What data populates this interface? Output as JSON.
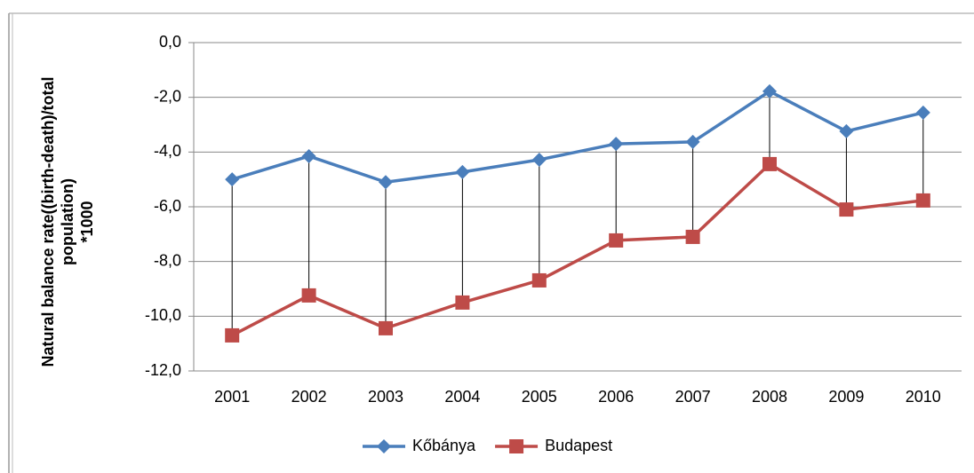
{
  "chart_data": {
    "type": "line",
    "ylabel": [
      "Natural balance rate((birth-death)/total",
      "population)",
      "*1000"
    ],
    "categories": [
      "2001",
      "2002",
      "2003",
      "2004",
      "2005",
      "2006",
      "2007",
      "2008",
      "2009",
      "2010"
    ],
    "series": [
      {
        "name": "Kőbánya",
        "color": "#4a7ebb",
        "marker": "diamond",
        "values": [
          -5.0,
          -4.15,
          -5.1,
          -4.73,
          -4.28,
          -3.7,
          -3.63,
          -1.78,
          -3.24,
          -2.56
        ]
      },
      {
        "name": "Budapest",
        "color": "#be4b48",
        "marker": "square",
        "values": [
          -10.7,
          -9.24,
          -10.44,
          -9.5,
          -8.69,
          -7.23,
          -7.1,
          -4.44,
          -6.1,
          -5.77
        ]
      }
    ],
    "high_low_lines": true,
    "ylim": [
      -12,
      0
    ],
    "yticks": [
      {
        "value": 0,
        "label": "0,0"
      },
      {
        "value": -2,
        "label": "-2,0"
      },
      {
        "value": -4,
        "label": "-4,0"
      },
      {
        "value": -6,
        "label": "-6,0"
      },
      {
        "value": -8,
        "label": "-8,0"
      },
      {
        "value": -10,
        "label": "-10,0"
      },
      {
        "value": -12,
        "label": "-12,0"
      }
    ],
    "grid": true,
    "legend": "bottom"
  }
}
